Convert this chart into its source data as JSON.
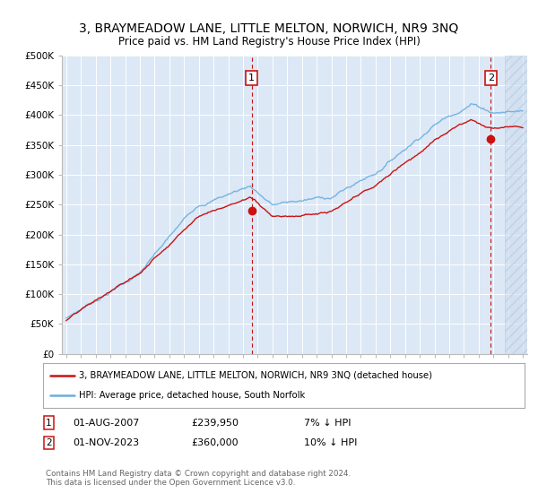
{
  "title": "3, BRAYMEADOW LANE, LITTLE MELTON, NORWICH, NR9 3NQ",
  "subtitle": "Price paid vs. HM Land Registry's House Price Index (HPI)",
  "bg_color": "#dce8f5",
  "grid_color": "#ffffff",
  "hpi_color": "#6aaee0",
  "price_color": "#cc1111",
  "ylim": [
    0,
    500000
  ],
  "yticks": [
    0,
    50000,
    100000,
    150000,
    200000,
    250000,
    300000,
    350000,
    400000,
    450000,
    500000
  ],
  "ytick_labels": [
    "£0",
    "£50K",
    "£100K",
    "£150K",
    "£200K",
    "£250K",
    "£300K",
    "£350K",
    "£400K",
    "£450K",
    "£500K"
  ],
  "xstart": 1995,
  "xend": 2026,
  "sale1_year": 2007.583,
  "sale1_price": 239950,
  "sale1_label": "1",
  "sale2_year": 2023.833,
  "sale2_price": 360000,
  "sale2_label": "2",
  "legend_line1": "3, BRAYMEADOW LANE, LITTLE MELTON, NORWICH, NR9 3NQ (detached house)",
  "legend_line2": "HPI: Average price, detached house, South Norfolk",
  "footer": "Contains HM Land Registry data © Crown copyright and database right 2024.\nThis data is licensed under the Open Government Licence v3.0."
}
